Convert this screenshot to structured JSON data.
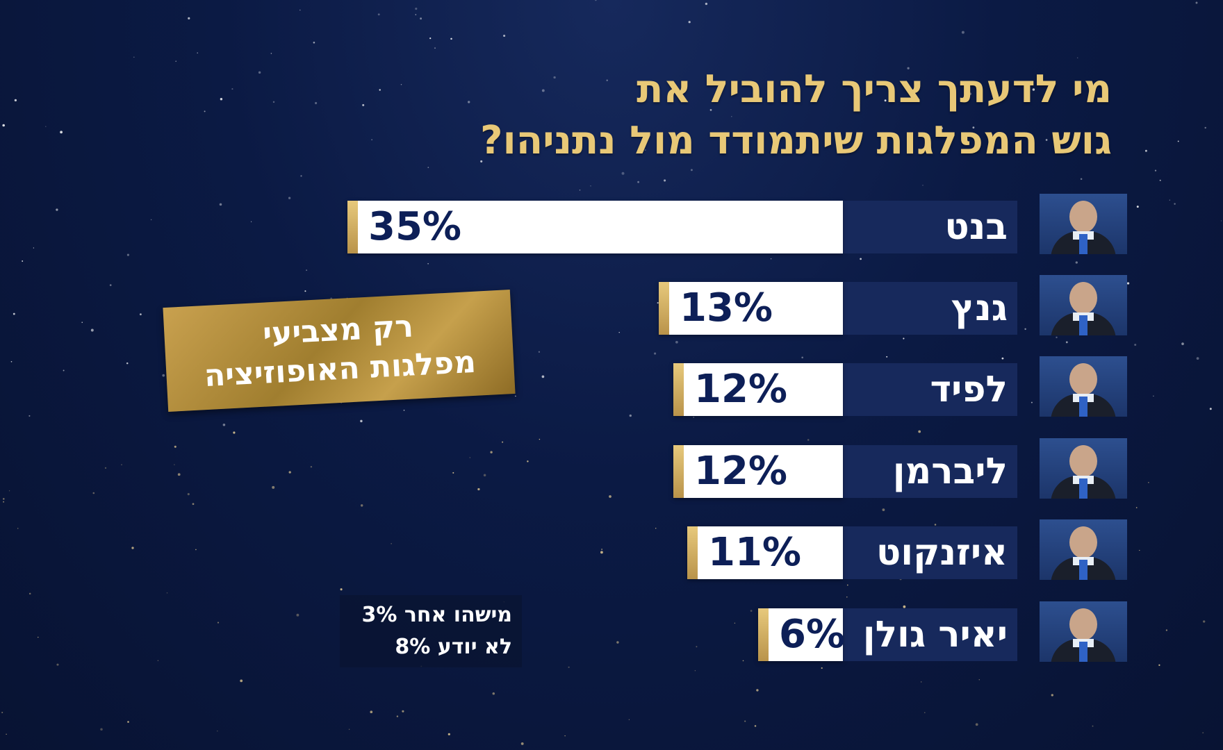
{
  "title": {
    "line1": "מי לדעתך צריך להוביל את",
    "line2": "גוש המפלגות שיתמודד מול נתניהו?"
  },
  "badge": {
    "line1": "רק  מצביעי",
    "line2": "מפלגות האופוזיציה"
  },
  "footnote": {
    "line1": "מישהו אחר 3%",
    "line2": "לא יודע 8%"
  },
  "colors": {
    "title_gold": "#e8c877",
    "bar_fill": "#ffffff",
    "bar_accent": "#d8b86a",
    "value_text": "#0d1f57",
    "name_box": "#17295c",
    "background": "#0b1a44"
  },
  "chart_data": {
    "type": "bar",
    "orientation": "horizontal",
    "title": "מי לדעתך צריך להוביל את גוש המפלגות שיתמודד מול נתניהו?",
    "categories": [
      "בנט",
      "גנץ",
      "לפיד",
      "ליברמן",
      "איזנקוט",
      "יאיר גולן"
    ],
    "values": [
      35,
      13,
      12,
      12,
      11,
      6
    ],
    "value_labels": [
      "35%",
      "13%",
      "12%",
      "12%",
      "11%",
      "6%"
    ],
    "unit": "%",
    "xlim": [
      0,
      35
    ],
    "grid": false,
    "legend": "none",
    "annotations": [
      "רק  מצביעי מפלגות האופוזיציה",
      "מישהו אחר 3%",
      "לא יודע 8%"
    ]
  }
}
